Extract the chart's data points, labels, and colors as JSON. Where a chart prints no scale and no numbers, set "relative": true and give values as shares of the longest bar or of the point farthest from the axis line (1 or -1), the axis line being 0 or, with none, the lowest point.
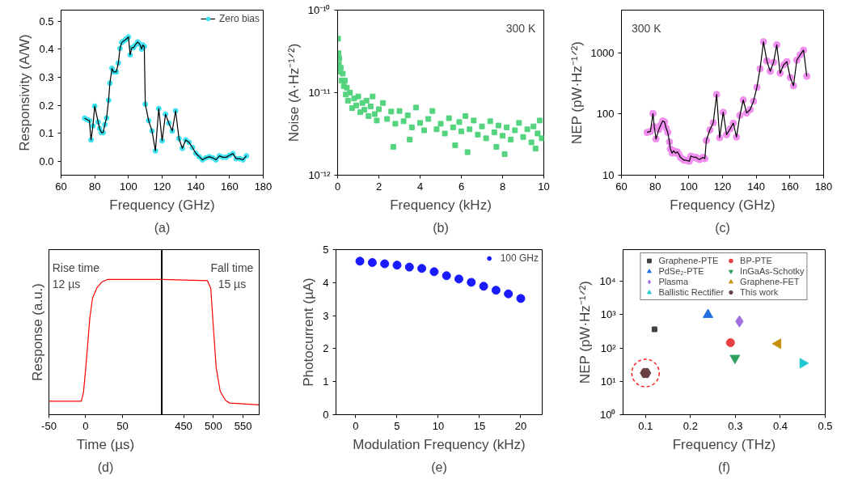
{
  "chart_data": [
    {
      "type": "line",
      "xlabel": "Frequency (GHz)",
      "ylabel": "Responsivity (A/W)",
      "xlim": [
        60,
        180
      ],
      "xticks": [
        60,
        80,
        100,
        120,
        140,
        160,
        180
      ],
      "ylim": [
        -0.05,
        0.54
      ],
      "yticks": [
        {
          "value": 0,
          "label": "0.0"
        },
        {
          "value": 0.1,
          "label": "0.1"
        },
        {
          "value": 0.2,
          "label": "0.2"
        },
        {
          "value": 0.3,
          "label": "0.3"
        },
        {
          "value": 0.4,
          "label": "0.4"
        },
        {
          "value": 0.5,
          "label": "0.5"
        }
      ],
      "marker": "circle",
      "legend": "top right",
      "annotations": [
        "(a)"
      ],
      "x": [
        74,
        75.4,
        76.8,
        77.8,
        78.9,
        80,
        82,
        82.9,
        84,
        85,
        86,
        87,
        88.2,
        89,
        90.2,
        91.2,
        92.8,
        94,
        95,
        96,
        97,
        98,
        99,
        100,
        101,
        102,
        103,
        104,
        105.5,
        106.6,
        107.8,
        108.5,
        109.4,
        110,
        112,
        114,
        116,
        118,
        120,
        122,
        124,
        126,
        128,
        130,
        132,
        134,
        136,
        138,
        140,
        142,
        144,
        146,
        148,
        150,
        152,
        154,
        156,
        158,
        160,
        162,
        164,
        166,
        168,
        170
      ],
      "series": [
        {
          "name": "Zero bias",
          "color": "#3ee3f2",
          "values": [
            0.154,
            0.149,
            0.145,
            0.076,
            0.126,
            0.197,
            0.14,
            0.117,
            0.102,
            0.102,
            0.131,
            0.154,
            0.218,
            0.279,
            0.332,
            0.319,
            0.319,
            0.351,
            0.403,
            0.424,
            0.429,
            0.433,
            0.438,
            0.444,
            0.38,
            0.406,
            0.406,
            0.415,
            0.426,
            0.419,
            0.401,
            0.415,
            0.41,
            0.204,
            0.145,
            0.108,
            0.037,
            0.188,
            0.073,
            0.168,
            0.136,
            0.108,
            0.18,
            0.081,
            0.046,
            0.076,
            0.067,
            0.049,
            0.028,
            0.016,
            0.005,
            0.012,
            0.016,
            0.012,
            0.005,
            0.019,
            0.014,
            0.014,
            0.021,
            0.027,
            0.009,
            0.009,
            0.005,
            0.019
          ]
        }
      ]
    },
    {
      "type": "scatter",
      "xlabel": "Frequency (kHz)",
      "ylabel": "Noise (A·Hz⁻¹ᐟ²)",
      "log": true,
      "xlim": [
        0,
        10
      ],
      "xticks": [
        0,
        2,
        4,
        6,
        8,
        10
      ],
      "ylim": [
        1e-12,
        1e-10
      ],
      "yticks": [
        {
          "value": 1e-12,
          "label": "10⁻¹²"
        },
        {
          "value": 1e-11,
          "label": "10⁻¹¹"
        },
        {
          "value": 1e-10,
          "label": "10⁻¹⁰"
        }
      ],
      "marker": "square",
      "color": "#55d47f",
      "annotations": [
        "300 K",
        "(b)"
      ],
      "x": [
        0.02,
        0.04,
        0.06,
        0.08,
        0.1,
        0.15,
        0.2,
        0.25,
        0.3,
        0.35,
        0.4,
        0.45,
        0.5,
        0.6,
        0.7,
        0.8,
        0.9,
        1.0,
        1.1,
        1.2,
        1.3,
        1.4,
        1.5,
        1.6,
        1.7,
        1.8,
        1.9,
        2.0,
        2.2,
        2.4,
        2.6,
        2.7,
        2.8,
        3.0,
        3.2,
        3.4,
        3.5,
        3.6,
        3.8,
        4.0,
        4.2,
        4.4,
        4.6,
        4.8,
        5.0,
        5.2,
        5.4,
        5.6,
        5.7,
        5.9,
        6.0,
        6.2,
        6.3,
        6.4,
        6.6,
        6.8,
        7.0,
        7.2,
        7.4,
        7.6,
        7.7,
        7.8,
        8.0,
        8.1,
        8.2,
        8.4,
        8.6,
        8.8,
        9.0,
        9.2,
        9.4,
        9.5,
        9.6,
        9.7,
        9.8,
        9.9
      ],
      "values": [
        4.5e-11,
        3e-11,
        2.2e-11,
        2.6e-11,
        1.8e-11,
        2e-11,
        1.4e-11,
        1.7e-11,
        1.2e-11,
        1.4e-11,
        9.5e-12,
        1.15e-11,
        8e-12,
        1e-11,
        6.5e-12,
        8.5e-12,
        7e-12,
        9e-12,
        5.8e-12,
        7.5e-12,
        6.2e-12,
        8e-12,
        5.2e-12,
        6.8e-12,
        9e-12,
        5.5e-12,
        4.6e-12,
        6.3e-12,
        7.5e-12,
        4.8e-12,
        5.9e-12,
        2.2e-12,
        4.2e-12,
        6e-12,
        4.5e-12,
        5.3e-12,
        2.7e-12,
        3.8e-12,
        6.6e-12,
        4.3e-12,
        3.5e-12,
        4.8e-12,
        6e-12,
        3.6e-12,
        4.2e-12,
        3.2e-12,
        4.9e-12,
        3.8e-12,
        2.3e-12,
        4.4e-12,
        3.4e-12,
        5.2e-12,
        1.9e-12,
        3.6e-12,
        4.6e-12,
        3.1e-12,
        3.9e-12,
        2.8e-12,
        4.5e-12,
        3.3e-12,
        2.2e-12,
        4e-12,
        3e-12,
        1.8e-12,
        3.8e-12,
        2.7e-12,
        3.5e-12,
        4.3e-12,
        2.9e-12,
        3.6e-12,
        2.5e-12,
        3.9e-12,
        2.1e-12,
        3.2e-12,
        4.6e-12,
        2.8e-12
      ]
    },
    {
      "type": "line",
      "xlabel": "Frequency (GHz)",
      "ylabel": "NEP (pW·Hz⁻¹ᐟ²)",
      "log": true,
      "xlim": [
        60,
        180
      ],
      "xticks": [
        60,
        80,
        100,
        120,
        140,
        160,
        180
      ],
      "ylim": [
        10,
        5000
      ],
      "yticks": [
        10,
        100,
        1000
      ],
      "marker": "circle",
      "annotations": [
        "300 K",
        "(c)"
      ],
      "x": [
        75.2,
        77.2,
        78.7,
        79.5,
        80.5,
        82.2,
        83.3,
        84.5,
        85.6,
        86.5,
        87.5,
        88.5,
        89,
        90.1,
        91,
        92.1,
        93.2,
        94.1,
        95,
        96.1,
        97.1,
        98.2,
        99.3,
        100.3,
        101.2,
        102.3,
        103.4,
        104.3,
        105.4,
        106.4,
        107.3,
        108.4,
        109.5,
        110.4,
        112.5,
        114.5,
        116.5,
        118.3,
        120.4,
        122.4,
        124.5,
        126.4,
        128.3,
        130.3,
        132.3,
        134.3,
        136.4,
        138.4,
        140.4,
        142.3,
        144.3,
        146.3,
        148.3,
        150.3,
        152.2,
        154.2,
        156.2,
        158.2,
        160.2,
        162.1,
        164.1,
        166.1,
        168.1,
        170
      ],
      "series": [
        {
          "color": "#f08ff0",
          "values": [
            50,
            52,
            102,
            62,
            39,
            56,
            66,
            77,
            74,
            59,
            50,
            35,
            27,
            23,
            25,
            23,
            24,
            22,
            19.6,
            18.5,
            17.6,
            17.6,
            17.2,
            16.9,
            20.5,
            20,
            19.6,
            19.6,
            18.5,
            18,
            18.8,
            19.6,
            18.6,
            37,
            55,
            72,
            209,
            41,
            107,
            46,
            57,
            71,
            42,
            95,
            170,
            104,
            118,
            162,
            273,
            550,
            1520,
            740,
            500,
            700,
            1350,
            465,
            635,
            720,
            395,
            290,
            760,
            930,
            1110,
            415
          ]
        }
      ]
    },
    {
      "type": "line",
      "xlabel": "Time (µs)",
      "ylabel": "Response (a.u.)",
      "relative": true,
      "xlim": [
        -50,
        104
      ],
      "xticks": [
        -50,
        0,
        50
      ],
      "annotations": [
        "Rise time\n12 µs",
        "(d)"
      ],
      "series": [
        {
          "color": "#ff0000",
          "x": [
            -50,
            -6,
            -3,
            0,
            2,
            5.6,
            9.3,
            15,
            22,
            30,
            104
          ],
          "values": [
            0.099,
            0.099,
            0.164,
            0.34,
            0.47,
            0.712,
            0.861,
            0.935,
            0.981,
            1.0,
            1.0
          ]
        }
      ]
    },
    {
      "type": "line",
      "relative": true,
      "xlim": [
        414,
        577
      ],
      "xticks": [
        450,
        500,
        550
      ],
      "annotations": [
        "Fall time\n15 µs"
      ],
      "series": [
        {
          "color": "#ff0000",
          "x": [
            414,
            490,
            495.7,
            500.3,
            504.8,
            511.6,
            520.7,
            527.5,
            577
          ],
          "values": [
            1.0,
            0.991,
            0.934,
            0.631,
            0.347,
            0.172,
            0.105,
            0.086,
            0.072
          ]
        }
      ]
    },
    {
      "type": "scatter",
      "xlabel": "Modulation Frequency (kHz)",
      "ylabel": "Photocurrent (µA)",
      "xlim": [
        -2.4,
        22.6
      ],
      "xticks": [
        0,
        5,
        10,
        15,
        20
      ],
      "ylim": [
        0,
        5
      ],
      "yticks": [
        0,
        1,
        2,
        3,
        4,
        5
      ],
      "marker": "circle",
      "legend": "top right",
      "annotations": [
        "(e)"
      ],
      "x": [
        0.5,
        2,
        3.5,
        5,
        6.5,
        8,
        9.5,
        11,
        12.5,
        14,
        15.5,
        17,
        18.5,
        20
      ],
      "series": [
        {
          "name": "100 GHz",
          "color": "#1a1aff",
          "values": [
            4.65,
            4.61,
            4.57,
            4.53,
            4.47,
            4.43,
            4.33,
            4.21,
            4.11,
            4.01,
            3.89,
            3.77,
            3.66,
            3.52
          ]
        }
      ]
    },
    {
      "type": "scatter",
      "xlabel": "Frequency (THz)",
      "ylabel": "NEP (pW·Hz⁻¹ᐟ²)",
      "log": true,
      "xlim": [
        0.05,
        0.5
      ],
      "xticks": [
        0.1,
        0.2,
        0.3,
        0.4,
        0.5
      ],
      "ylim": [
        1,
        90000
      ],
      "yticks": [
        {
          "value": 1,
          "label": "10⁰"
        },
        {
          "value": 10,
          "label": "10¹"
        },
        {
          "value": 100,
          "label": "10²"
        },
        {
          "value": 1000,
          "label": "10³"
        },
        {
          "value": 10000,
          "label": "10⁴"
        }
      ],
      "legend": "top",
      "annotations": [
        "(f)"
      ],
      "series": [
        {
          "name": "Graphene-PTE",
          "color": "#404040",
          "marker": "square",
          "x": [
            0.12
          ],
          "values": [
            365
          ]
        },
        {
          "name": "BP-PTE",
          "color": "#e84040",
          "marker": "circle",
          "x": [
            0.289
          ],
          "values": [
            145
          ]
        },
        {
          "name": "PdSe₂-PTE",
          "color": "#2070e0",
          "marker": "triangle",
          "x": [
            0.239
          ],
          "values": [
            1000
          ]
        },
        {
          "name": "InGaAs-Schotky",
          "color": "#30a060",
          "marker": "triangle_down",
          "x": [
            0.299
          ],
          "values": [
            50
          ]
        },
        {
          "name": "Plasma",
          "color": "#a070e0",
          "marker": "diamond",
          "x": [
            0.309
          ],
          "values": [
            630
          ]
        },
        {
          "name": "Graphene-FET",
          "color": "#c8900a",
          "marker": "triangle_left",
          "x": [
            0.395
          ],
          "values": [
            135
          ]
        },
        {
          "name": "Ballistic Rectifier",
          "color": "#20c8d0",
          "marker": "triangle_right",
          "x": [
            0.45
          ],
          "values": [
            35
          ]
        },
        {
          "name": "This work",
          "color": "#6b4040",
          "x": [
            0.1
          ],
          "values": [
            17.8
          ]
        }
      ]
    }
  ]
}
